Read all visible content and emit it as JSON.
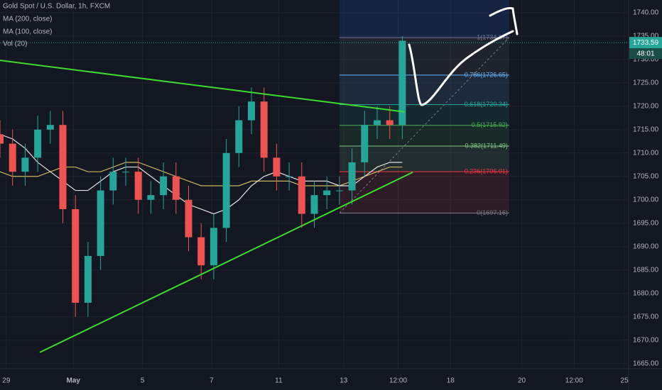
{
  "chart_data": {
    "type": "candlestick",
    "title": "Gold Spot / U.S. Dollar, 1h, FXCM",
    "legend_items": [
      "MA (200, close)",
      "MA (100, close)",
      "Vol (20)"
    ],
    "xlim": [
      0,
      300
    ],
    "ylim": [
      1663.9,
      1742.7
    ],
    "xticks": [
      {
        "value": 3,
        "label": "29"
      },
      {
        "value": 35,
        "label": "May"
      },
      {
        "value": 68,
        "label": "5"
      },
      {
        "value": 101,
        "label": "7"
      },
      {
        "value": 133,
        "label": "11"
      },
      {
        "value": 164,
        "label": "13"
      },
      {
        "value": 190,
        "label": "12:00"
      },
      {
        "value": 215,
        "label": "18"
      },
      {
        "value": 249,
        "label": "20"
      },
      {
        "value": 274,
        "label": "12:00"
      },
      {
        "value": 298,
        "label": "25"
      }
    ],
    "yticks": [
      {
        "value": 1665,
        "label": "1665.00"
      },
      {
        "value": 1670,
        "label": "1670.00"
      },
      {
        "value": 1675,
        "label": "1675.00"
      },
      {
        "value": 1680,
        "label": "1680.00"
      },
      {
        "value": 1685,
        "label": "1685.00"
      },
      {
        "value": 1690,
        "label": "1690.00"
      },
      {
        "value": 1695,
        "label": "1695.00"
      },
      {
        "value": 1700,
        "label": "1700.00"
      },
      {
        "value": 1705,
        "label": "1705.00"
      },
      {
        "value": 1710,
        "label": "1710.00"
      },
      {
        "value": 1715,
        "label": "1715.00"
      },
      {
        "value": 1720,
        "label": "1720.00"
      },
      {
        "value": 1725,
        "label": "1725.00"
      },
      {
        "value": 1730,
        "label": "1730.00"
      },
      {
        "value": 1735,
        "label": "1735.00"
      },
      {
        "value": 1740,
        "label": "1740.00"
      }
    ],
    "grid": true,
    "up_color": "#26a69a",
    "down_color": "#ef5350",
    "x": [
      0,
      6,
      12,
      18,
      24,
      30,
      36,
      42,
      48,
      54,
      60,
      66,
      72,
      78,
      84,
      90,
      96,
      102,
      108,
      114,
      120,
      126,
      132,
      138,
      144,
      150,
      156,
      162,
      168,
      174,
      180,
      186,
      192
    ],
    "open": [
      1714,
      1712,
      1706,
      1709,
      1715,
      1716,
      1698,
      1678,
      1688,
      1702,
      1706,
      1706,
      1700,
      1701,
      1705,
      1700,
      1692,
      1686,
      1694,
      1710,
      1717,
      1721,
      1709,
      1705,
      1705,
      1697,
      1701,
      1702,
      1702,
      1708,
      1716,
      1717,
      1716
    ],
    "high": [
      1717,
      1715,
      1712,
      1718,
      1719,
      1719,
      1701,
      1691,
      1705,
      1709,
      1709,
      1709,
      1704,
      1708,
      1708,
      1703,
      1695,
      1697,
      1713,
      1720,
      1724,
      1724,
      1712,
      1708,
      1708,
      1704,
      1705,
      1705,
      1711,
      1719,
      1720,
      1720,
      1735
    ],
    "low": [
      1709,
      1703,
      1703,
      1706,
      1712,
      1695,
      1675,
      1675,
      1685,
      1699,
      1703,
      1697,
      1697,
      1698,
      1697,
      1689,
      1683,
      1683,
      1691,
      1707,
      1714,
      1706,
      1702,
      1702,
      1694,
      1694,
      1698,
      1699,
      1699,
      1705,
      1713,
      1713,
      1713
    ],
    "close": [
      1712,
      1706,
      1709,
      1715,
      1716,
      1698,
      1678,
      1688,
      1702,
      1706,
      1706,
      1700,
      1701,
      1705,
      1700,
      1692,
      1686,
      1694,
      1710,
      1717,
      1721,
      1709,
      1705,
      1705,
      1697,
      1701,
      1702,
      1702,
      1708,
      1716,
      1717,
      1716,
      1734
    ],
    "series": [
      {
        "name": "MA (200, close)",
        "color": "#c9b458",
        "values": [
          1706,
          1705,
          1705,
          1705,
          1706,
          1707,
          1707,
          1706,
          1706,
          1707,
          1708,
          1708,
          1707,
          1706,
          1705,
          1704,
          1703,
          1703,
          1703,
          1703,
          1704,
          1704,
          1704,
          1704,
          1703,
          1703,
          1703,
          1703,
          1704,
          1705,
          1706,
          1707,
          1707
        ]
      },
      {
        "name": "MA (100, close)",
        "color": "#e0e0e0",
        "values": [
          1714,
          1713,
          1711,
          1708,
          1706,
          1704,
          1702,
          1702,
          1704,
          1706,
          1707,
          1707,
          1705,
          1703,
          1701,
          1699,
          1698,
          1697,
          1698,
          1700,
          1703,
          1705,
          1706,
          1705,
          1704,
          1704,
          1704,
          1703,
          1703,
          1705,
          1707,
          1708,
          1708
        ]
      }
    ],
    "trendlines": [
      {
        "color": "#3ddc2f",
        "x": [
          0,
          193
        ],
        "y": [
          1729.8,
          1718.8
        ]
      },
      {
        "color": "#3ddc2f",
        "x": [
          19,
          197
        ],
        "y": [
          1667.4,
          1705.9
        ]
      }
    ],
    "fib_x": [
      162,
      243
    ],
    "fib_levels": [
      {
        "value": 1734.67,
        "label": "1(1734.67)",
        "color": "#787b86"
      },
      {
        "value": 1726.65,
        "label": "0.786(1726.65)",
        "color": "#64b5f6"
      },
      {
        "value": 1720.34,
        "label": "0.618(1720.34)",
        "color": "#26a69a"
      },
      {
        "value": 1715.92,
        "label": "0.5(1715.92)",
        "color": "#4caf50"
      },
      {
        "value": 1711.49,
        "label": "0.382(1711.49)",
        "color": "#81c784"
      },
      {
        "value": 1706.01,
        "label": "0.236(1706.01)",
        "color": "#f23645"
      },
      {
        "value": 1697.16,
        "label": "0(1697.16)",
        "color": "#787b86"
      }
    ],
    "last_price": {
      "value": 1733.59,
      "label": "1733.59"
    },
    "countdown": "48:01"
  }
}
